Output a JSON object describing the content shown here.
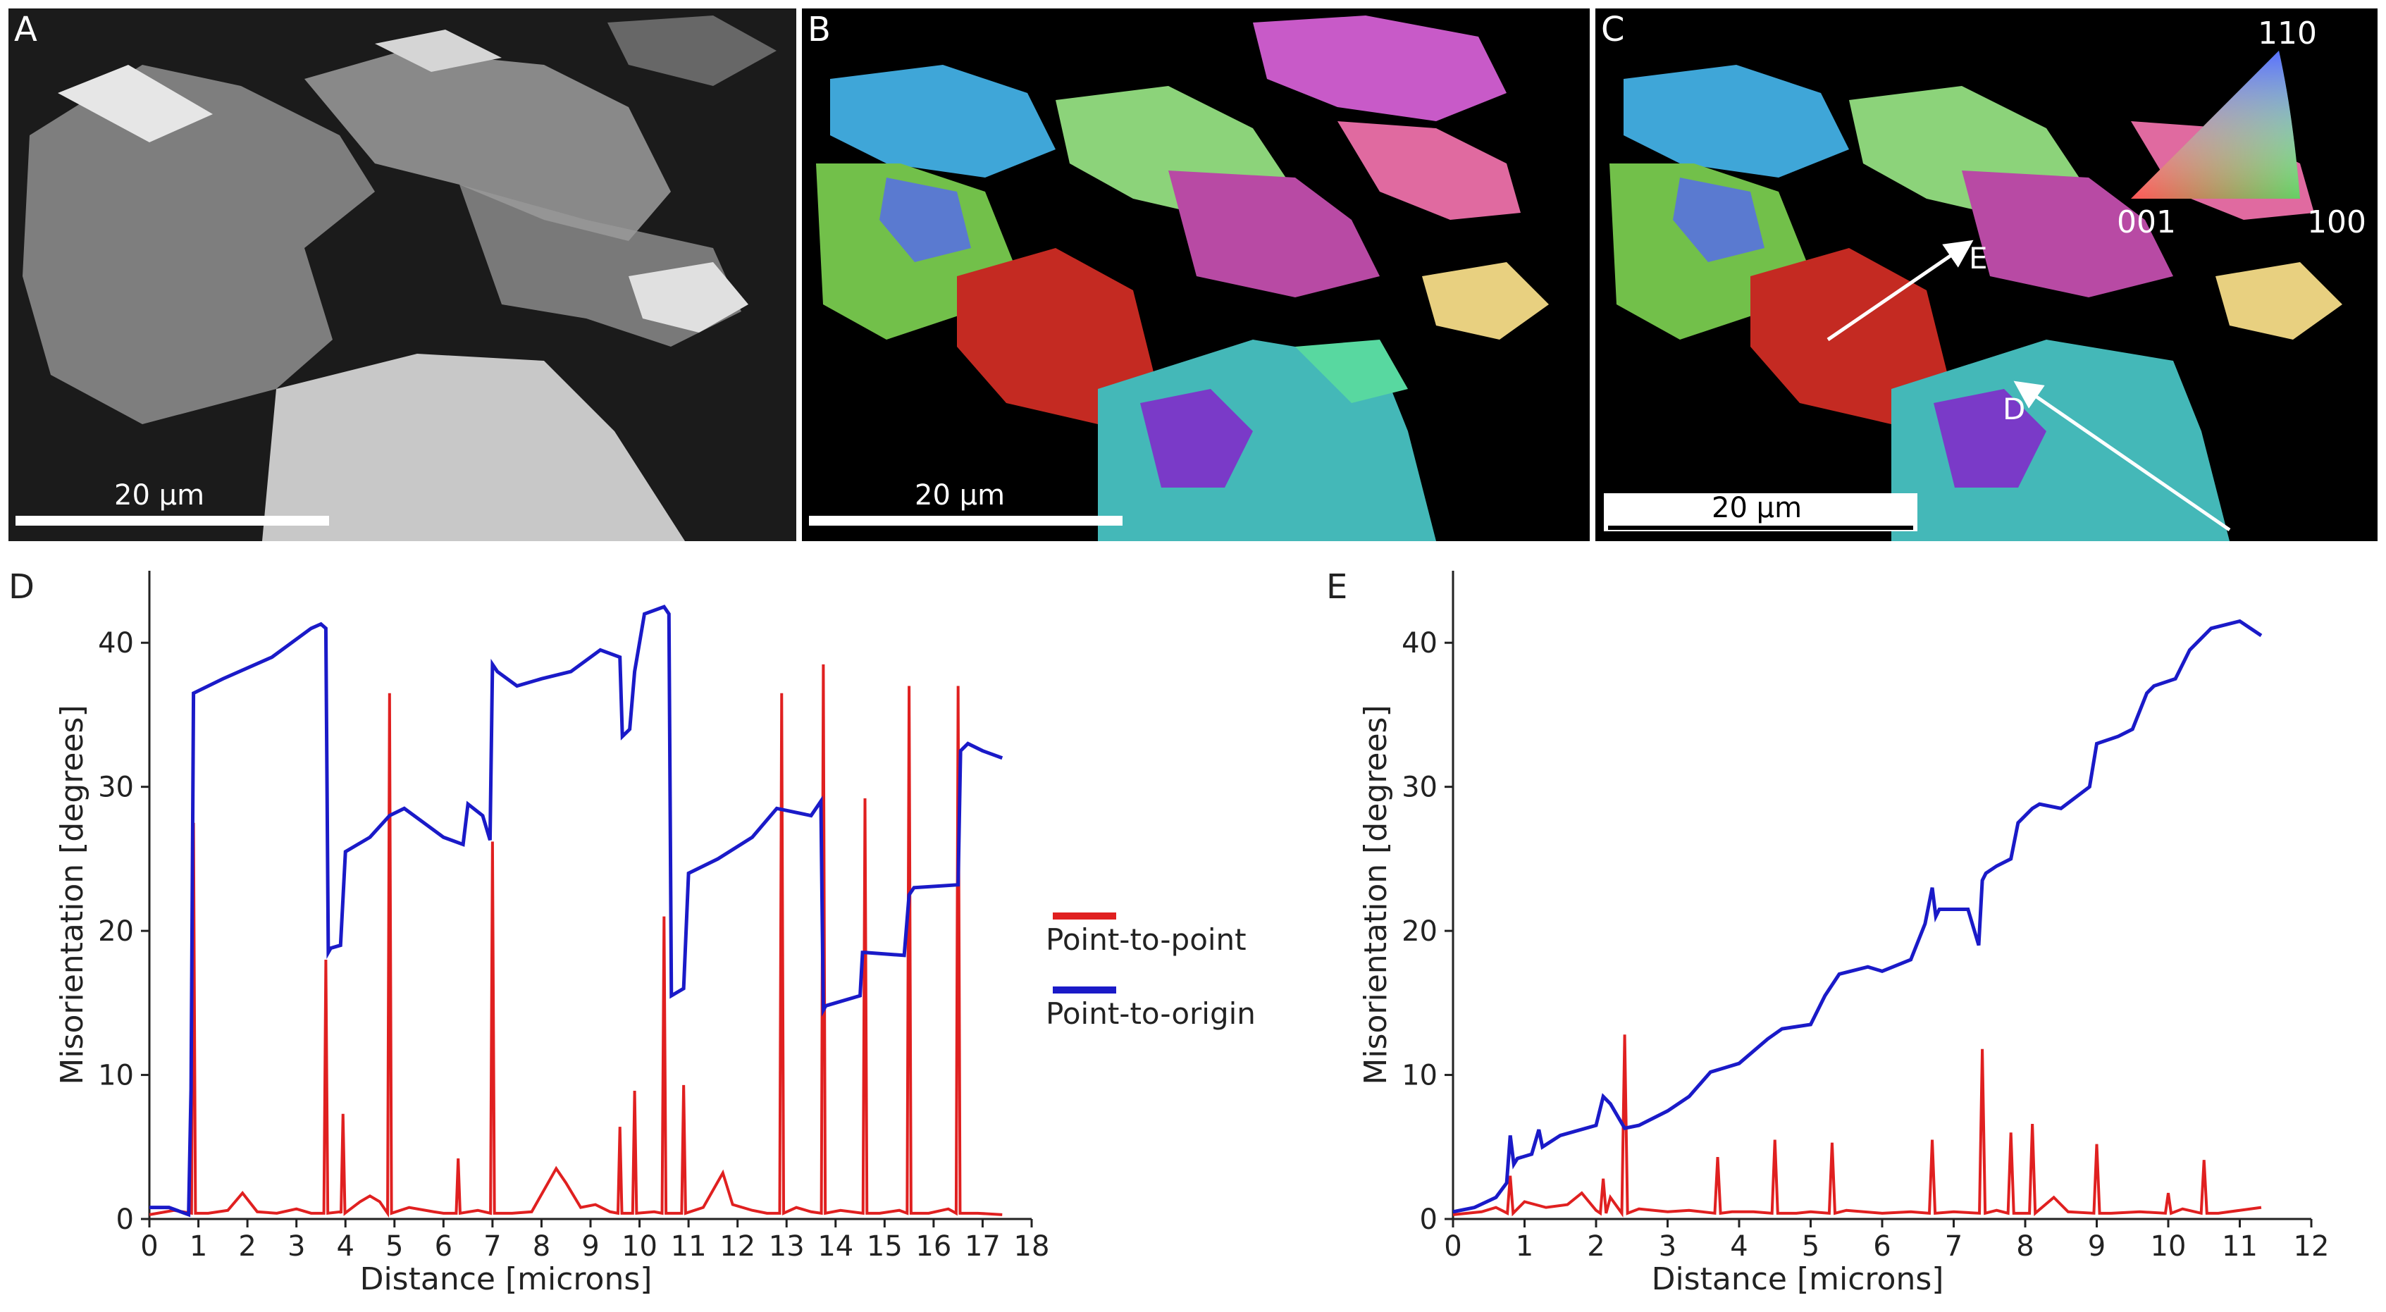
{
  "panels": {
    "a": {
      "label": "A",
      "scale": "20 µm"
    },
    "b": {
      "label": "B",
      "scale": "20 µm"
    },
    "c": {
      "label": "C",
      "scale": "20 µm",
      "ipf": {
        "top": "110",
        "left": "001",
        "right": "100"
      },
      "arrows": {
        "e": "E",
        "d": "D"
      }
    }
  },
  "colors": {
    "point_to_point": "#e02020",
    "point_to_origin": "#1a1ac8"
  },
  "chart_data": [
    {
      "panel": "D",
      "type": "line",
      "xlabel": "Distance [microns]",
      "ylabel": "Misorientation [degrees]",
      "xlim": [
        0,
        18
      ],
      "ylim": [
        0,
        45
      ],
      "xticks": [
        0,
        1,
        2,
        3,
        4,
        5,
        6,
        7,
        8,
        9,
        10,
        11,
        12,
        13,
        14,
        15,
        16,
        17,
        18
      ],
      "yticks": [
        0,
        10,
        20,
        30,
        40
      ],
      "legend": [
        "Point-to-point",
        "Point-to-origin"
      ],
      "series": [
        {
          "name": "Point-to-origin",
          "x": [
            0,
            0.4,
            0.8,
            0.85,
            0.9,
            1.5,
            2.5,
            3.3,
            3.5,
            3.6,
            3.65,
            3.7,
            3.9,
            4.0,
            4.5,
            4.9,
            5.2,
            5.6,
            6.0,
            6.4,
            6.5,
            6.8,
            6.95,
            7.0,
            7.1,
            7.5,
            8.0,
            8.6,
            9.2,
            9.6,
            9.65,
            9.8,
            9.9,
            10.1,
            10.5,
            10.6,
            10.65,
            10.9,
            11.0,
            11.6,
            12.3,
            12.8,
            13.5,
            13.7,
            13.75,
            13.8,
            14.5,
            14.55,
            14.6,
            15.4,
            15.5,
            15.6,
            16.5,
            16.55,
            16.7,
            17.0,
            17.4
          ],
          "y": [
            0.8,
            0.8,
            0.3,
            9,
            36.5,
            37.5,
            39,
            41,
            41.3,
            41,
            18.5,
            18.8,
            19,
            25.5,
            26.5,
            28,
            28.5,
            27.5,
            26.5,
            26,
            28.8,
            28,
            26.3,
            38.5,
            38,
            37,
            37.5,
            38,
            39.5,
            39,
            33.5,
            34,
            38,
            42,
            42.5,
            42,
            15.5,
            16,
            24,
            25,
            26.5,
            28.5,
            28,
            29,
            14.5,
            14.8,
            15.5,
            18.5,
            18.5,
            18.3,
            22.5,
            23,
            23.2,
            32.5,
            33,
            32.5,
            32
          ]
        },
        {
          "name": "Point-to-point",
          "baseline_x": [
            0,
            0.5,
            1.2,
            1.6,
            1.9,
            2.2,
            2.6,
            3.0,
            3.3,
            3.9,
            4.3,
            4.5,
            4.7,
            5.3,
            5.8,
            6.0,
            6.7,
            7.4,
            7.8,
            8.3,
            8.5,
            8.8,
            9.1,
            9.4,
            10.3,
            11.3,
            11.7,
            11.9,
            12.3,
            12.6,
            13.2,
            13.5,
            14.1,
            14.9,
            15.3,
            15.9,
            16.3,
            16.9,
            17.4
          ],
          "baseline_y": [
            0.3,
            0.6,
            0.4,
            0.6,
            1.8,
            0.5,
            0.4,
            0.7,
            0.4,
            0.5,
            1.2,
            1.6,
            1.2,
            0.8,
            0.5,
            0.4,
            0.6,
            0.4,
            0.5,
            3.5,
            2.5,
            0.8,
            1.0,
            0.5,
            0.5,
            0.8,
            3.2,
            1.0,
            0.6,
            0.4,
            0.8,
            0.5,
            0.6,
            0.4,
            0.6,
            0.4,
            0.7,
            0.4,
            0.3
          ],
          "spikes": [
            [
              0.9,
              27.5
            ],
            [
              3.6,
              18
            ],
            [
              3.95,
              7.3
            ],
            [
              4.9,
              36.5
            ],
            [
              6.3,
              4.2
            ],
            [
              7.0,
              26.2
            ],
            [
              9.6,
              6.4
            ],
            [
              9.9,
              8.9
            ],
            [
              10.5,
              21
            ],
            [
              10.9,
              9.3
            ],
            [
              12.9,
              36.5
            ],
            [
              13.75,
              38.5
            ],
            [
              14.6,
              29.2
            ],
            [
              15.5,
              37
            ],
            [
              16.5,
              37
            ]
          ]
        }
      ]
    },
    {
      "panel": "E",
      "type": "line",
      "xlabel": "Distance [microns]",
      "ylabel": "Misorientation [degrees]",
      "xlim": [
        0,
        12
      ],
      "ylim": [
        0,
        45
      ],
      "xticks": [
        0,
        1,
        2,
        3,
        4,
        5,
        6,
        7,
        8,
        9,
        10,
        11,
        12
      ],
      "yticks": [
        0,
        10,
        20,
        30,
        40
      ],
      "series": [
        {
          "name": "Point-to-origin",
          "x": [
            0,
            0.3,
            0.6,
            0.75,
            0.8,
            0.85,
            0.9,
            1.1,
            1.2,
            1.25,
            1.5,
            2.0,
            2.1,
            2.2,
            2.4,
            2.6,
            3.0,
            3.3,
            3.6,
            3.8,
            4.0,
            4.4,
            4.6,
            5.0,
            5.2,
            5.4,
            5.8,
            6.0,
            6.4,
            6.6,
            6.7,
            6.75,
            6.8,
            7.2,
            7.35,
            7.4,
            7.45,
            7.6,
            7.8,
            7.9,
            8.1,
            8.2,
            8.5,
            8.9,
            9.0,
            9.3,
            9.5,
            9.7,
            9.8,
            10.1,
            10.3,
            10.5,
            10.6,
            11.0,
            11.3
          ],
          "y": [
            0.5,
            0.8,
            1.5,
            2.5,
            5.8,
            3.8,
            4.2,
            4.5,
            6.2,
            5.0,
            5.8,
            6.5,
            8.5,
            8.0,
            6.3,
            6.5,
            7.5,
            8.5,
            10.2,
            10.5,
            10.8,
            12.5,
            13.2,
            13.5,
            15.5,
            17.0,
            17.5,
            17.2,
            18.0,
            20.5,
            23.0,
            21.0,
            21.5,
            21.5,
            19.0,
            23.5,
            24.0,
            24.5,
            25.0,
            27.5,
            28.5,
            28.8,
            28.5,
            30.0,
            33.0,
            33.5,
            34.0,
            36.5,
            37.0,
            37.5,
            39.5,
            40.5,
            41.0,
            41.5,
            40.5
          ]
        },
        {
          "name": "Point-to-point",
          "baseline_x": [
            0,
            0.4,
            0.6,
            1.0,
            1.3,
            1.6,
            1.8,
            2.0,
            2.2,
            2.6,
            3.0,
            3.3,
            3.9,
            4.2,
            4.8,
            5.0,
            5.5,
            6.0,
            6.4,
            7.0,
            7.6,
            8.4,
            8.6,
            9.2,
            9.6,
            10.2,
            10.7,
            11.0,
            11.3
          ],
          "baseline_y": [
            0.3,
            0.5,
            0.8,
            1.2,
            0.8,
            1.0,
            1.8,
            0.6,
            1.5,
            0.7,
            0.5,
            0.6,
            0.5,
            0.5,
            0.4,
            0.5,
            0.6,
            0.4,
            0.5,
            0.5,
            0.6,
            1.5,
            0.5,
            0.4,
            0.5,
            0.7,
            0.4,
            0.6,
            0.8
          ],
          "spikes": [
            [
              0.8,
              3.0
            ],
            [
              2.1,
              2.8
            ],
            [
              2.4,
              12.8
            ],
            [
              3.7,
              4.3
            ],
            [
              4.5,
              5.5
            ],
            [
              5.3,
              5.3
            ],
            [
              6.7,
              5.5
            ],
            [
              7.4,
              11.8
            ],
            [
              7.8,
              6.0
            ],
            [
              8.1,
              6.6
            ],
            [
              9.0,
              5.2
            ],
            [
              10.0,
              1.8
            ],
            [
              10.5,
              4.1
            ]
          ]
        }
      ]
    }
  ]
}
